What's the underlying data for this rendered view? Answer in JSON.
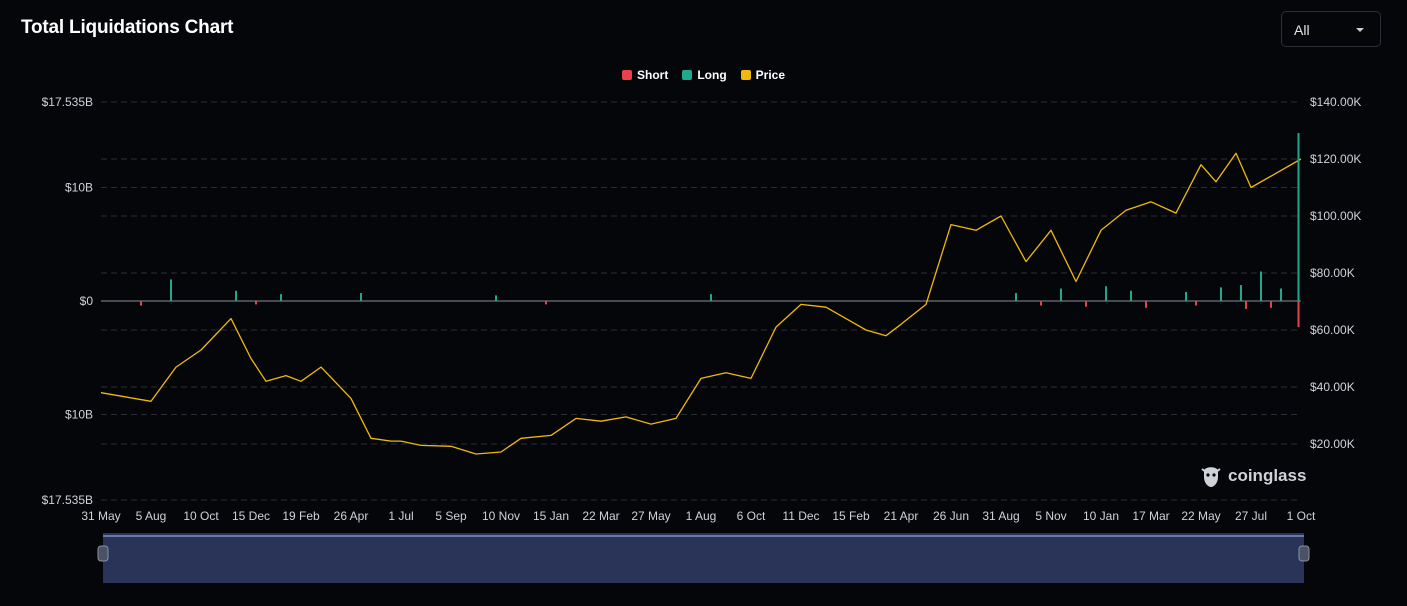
{
  "header": {
    "title": "Total Liquidations Chart",
    "range_select": {
      "value": "All"
    }
  },
  "legend": [
    {
      "label": "Short",
      "color": "#e8414c"
    },
    {
      "label": "Long",
      "color": "#1ea88e"
    },
    {
      "label": "Price",
      "color": "#f0b90b"
    }
  ],
  "logo": {
    "text": "coinglass",
    "icon": "coinglass-logo-icon"
  },
  "colors": {
    "short": "#e8414c",
    "long": "#1ea88e",
    "price": "#f0b90b",
    "grid": "#2a2d35",
    "axis_text": "#cfd2d8",
    "navigator_fill": "#2a3358",
    "navigator_line": "#7d8fc8"
  },
  "chart_data": {
    "type": "bar",
    "title": "Total Liquidations Chart",
    "x_ticks": [
      "31 May",
      "5 Aug",
      "10 Oct",
      "15 Dec",
      "19 Feb",
      "26 Apr",
      "1 Jul",
      "5 Sep",
      "10 Nov",
      "15 Jan",
      "22 Mar",
      "27 May",
      "1 Aug",
      "6 Oct",
      "11 Dec",
      "15 Feb",
      "21 Apr",
      "26 Jun",
      "31 Aug",
      "5 Nov",
      "10 Jan",
      "17 Mar",
      "22 May",
      "27 Jul",
      "1 Oct"
    ],
    "y_left_ticks": [
      "$17.535B",
      "$10B",
      "$0",
      "$10B",
      "$17.535B"
    ],
    "y_left_values": [
      17.535,
      10,
      0,
      -10,
      -17.535
    ],
    "y_left_range": [
      -17.535,
      17.535
    ],
    "y_right_ticks": [
      "$140.00K",
      "$120.00K",
      "$100.00K",
      "$80.00K",
      "$60.00K",
      "$40.00K",
      "$20.00K"
    ],
    "y_right_values": [
      140000,
      120000,
      100000,
      80000,
      60000,
      40000,
      20000
    ],
    "y_right_range": [
      0,
      140000
    ],
    "grid": true,
    "legend_position": "top-center",
    "series": [
      {
        "name": "Price",
        "axis": "right",
        "type": "line",
        "x": [
          0,
          1,
          1.5,
          2,
          2.6,
          3,
          3.3,
          3.7,
          4,
          4.4,
          5,
          5.4,
          5.8,
          6,
          6.4,
          7,
          7.5,
          8,
          8.4,
          9,
          9.5,
          10,
          10.5,
          11,
          11.5,
          12,
          12.5,
          13,
          13.5,
          14,
          14.5,
          15,
          15.3,
          15.7,
          16,
          16.5,
          17,
          17.5,
          18,
          18.5,
          19,
          19.5,
          20,
          20.5,
          21,
          21.5,
          22,
          22.3,
          22.7,
          23,
          23.5,
          24
        ],
        "y": [
          38000,
          35000,
          47000,
          53000,
          64000,
          50000,
          42000,
          44000,
          42000,
          47000,
          36000,
          22000,
          21000,
          21000,
          19500,
          19200,
          16500,
          17200,
          22000,
          23000,
          29000,
          28000,
          29500,
          27000,
          29000,
          43000,
          45000,
          43000,
          61000,
          69000,
          68000,
          63000,
          60000,
          58000,
          62000,
          69000,
          97000,
          95000,
          100000,
          84000,
          95000,
          77000,
          95000,
          102000,
          105000,
          101000,
          118000,
          112000,
          122000,
          110000,
          115000,
          120000
        ]
      },
      {
        "name": "Long",
        "axis": "left",
        "type": "bar",
        "x": [
          1.4,
          2.7,
          3.6,
          5.2,
          7.9,
          12.2,
          18.3,
          19.2,
          20.1,
          20.6,
          21.7,
          22.4,
          22.8,
          23.2,
          23.6,
          23.95
        ],
        "values": [
          1.9,
          0.9,
          0.6,
          0.7,
          0.5,
          0.6,
          0.7,
          1.1,
          1.3,
          0.9,
          0.8,
          1.2,
          1.4,
          2.6,
          1.1,
          14.8
        ]
      },
      {
        "name": "Short",
        "axis": "left",
        "type": "bar",
        "x": [
          0.8,
          3.1,
          8.9,
          18.8,
          19.7,
          20.9,
          21.9,
          22.9,
          23.4,
          23.95
        ],
        "values": [
          -0.4,
          -0.3,
          -0.3,
          -0.4,
          -0.5,
          -0.6,
          -0.4,
          -0.7,
          -0.6,
          -2.3
        ]
      }
    ]
  }
}
